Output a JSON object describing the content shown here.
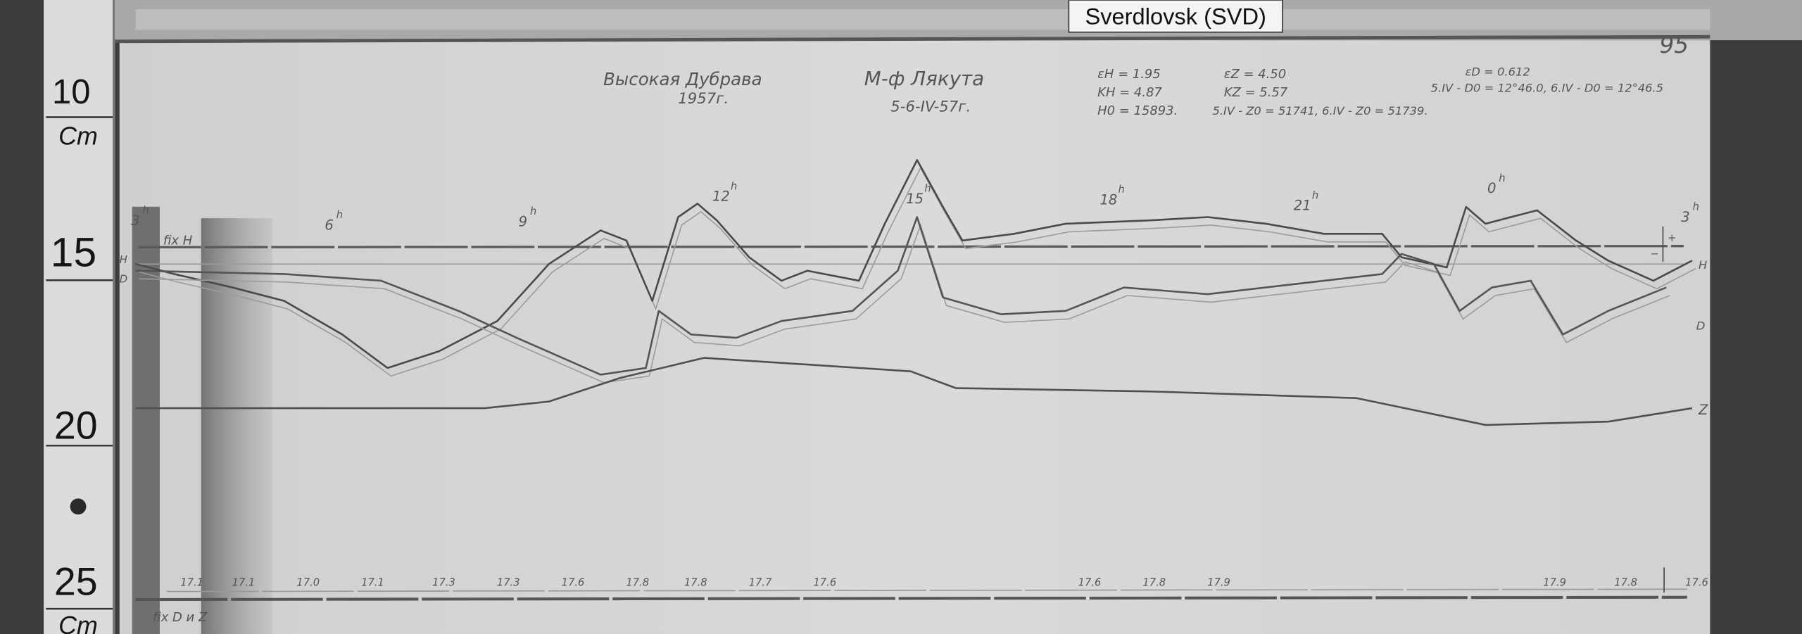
{
  "tag_label": "Sverdlovsk (SVD)",
  "page_number": "95",
  "ruler": {
    "unit_top": "Cm",
    "unit_bottom": "Cm",
    "marks": [
      "10",
      "15",
      "20",
      "25"
    ]
  },
  "header": {
    "station": "Высокая Дубрава",
    "year": "1957г.",
    "observer": "М-ф Лякута",
    "date": "5-6-IV-57г.",
    "eps_h": "εH = 1.95",
    "k_h": "KH = 4.87",
    "h0": "H0 = 15893.",
    "eps_z": "εZ = 4.50",
    "k_z": "KZ = 5.57",
    "z0": "5.IV - Z0 = 51741,  6.IV - Z0 = 51739.",
    "eps_d": "εD = 0.612",
    "d0": "5.IV - D0 = 12°46.0,  6.IV - D0 = 12°46.5"
  },
  "annotations": {
    "fix_h": "fix H",
    "fix_dz": "fix D и Z",
    "left_h": "H",
    "left_d": "D",
    "left_z": "Z",
    "plus": "+",
    "minus": "−"
  },
  "chart_data": {
    "type": "line",
    "title": "",
    "xlabel": "",
    "ylabel": "",
    "y_unit": "cm (ruler)",
    "x_ticks": [
      {
        "hour": 3,
        "label": "3h"
      },
      {
        "hour": 6,
        "label": "6h"
      },
      {
        "hour": 9,
        "label": "9h"
      },
      {
        "hour": 12,
        "label": "12h"
      },
      {
        "hour": 15,
        "label": "15h"
      },
      {
        "hour": 18,
        "label": "18h"
      },
      {
        "hour": 21,
        "label": "21h"
      },
      {
        "hour": 24,
        "label": "0h"
      },
      {
        "hour": 27,
        "label": "3h"
      }
    ],
    "baselines": {
      "H": 14.7,
      "H2": 15.2,
      "bottom": 26.4
    },
    "series": [
      {
        "name": "H",
        "color": "#4a4a4a",
        "points": [
          [
            3.0,
            15.2
          ],
          [
            3.6,
            15.5
          ],
          [
            4.5,
            15.9
          ],
          [
            5.3,
            16.3
          ],
          [
            6.2,
            17.3
          ],
          [
            6.9,
            18.3
          ],
          [
            7.7,
            17.8
          ],
          [
            8.6,
            16.9
          ],
          [
            9.4,
            15.2
          ],
          [
            10.2,
            14.2
          ],
          [
            10.6,
            14.5
          ],
          [
            11.0,
            16.3
          ],
          [
            11.4,
            13.8
          ],
          [
            11.7,
            13.4
          ],
          [
            12.0,
            13.9
          ],
          [
            12.5,
            15.0
          ],
          [
            13.0,
            15.7
          ],
          [
            13.4,
            15.4
          ],
          [
            14.2,
            15.7
          ],
          [
            14.6,
            14.0
          ],
          [
            15.1,
            12.1
          ],
          [
            15.5,
            13.5
          ],
          [
            15.8,
            14.5
          ],
          [
            16.6,
            14.3
          ],
          [
            17.4,
            14.0
          ],
          [
            18.7,
            13.9
          ],
          [
            19.6,
            13.8
          ],
          [
            20.5,
            14.0
          ],
          [
            21.4,
            14.3
          ],
          [
            22.3,
            14.3
          ],
          [
            22.6,
            15.0
          ],
          [
            23.3,
            15.3
          ],
          [
            23.6,
            13.5
          ],
          [
            23.9,
            14.0
          ],
          [
            24.7,
            13.6
          ],
          [
            25.3,
            14.5
          ],
          [
            25.8,
            15.1
          ],
          [
            26.5,
            15.7
          ],
          [
            27.1,
            15.1
          ]
        ]
      },
      {
        "name": "D",
        "color": "#555555",
        "points": [
          [
            3.0,
            15.4
          ],
          [
            5.3,
            15.5
          ],
          [
            6.8,
            15.7
          ],
          [
            8.0,
            16.6
          ],
          [
            8.9,
            17.4
          ],
          [
            10.2,
            18.5
          ],
          [
            10.9,
            18.3
          ],
          [
            11.1,
            16.6
          ],
          [
            11.6,
            17.3
          ],
          [
            12.3,
            17.4
          ],
          [
            13.0,
            16.9
          ],
          [
            14.1,
            16.6
          ],
          [
            14.8,
            15.4
          ],
          [
            15.1,
            13.8
          ],
          [
            15.5,
            16.2
          ],
          [
            16.4,
            16.7
          ],
          [
            17.4,
            16.6
          ],
          [
            18.3,
            15.9
          ],
          [
            19.6,
            16.1
          ],
          [
            21.4,
            15.7
          ],
          [
            22.3,
            15.5
          ],
          [
            22.6,
            14.9
          ],
          [
            23.1,
            15.2
          ],
          [
            23.5,
            16.6
          ],
          [
            24.0,
            15.9
          ],
          [
            24.6,
            15.7
          ],
          [
            25.1,
            17.3
          ],
          [
            25.8,
            16.6
          ],
          [
            26.7,
            15.9
          ]
        ]
      },
      {
        "name": "Z",
        "color": "#505050",
        "points": [
          [
            3.0,
            19.5
          ],
          [
            6.2,
            19.5
          ],
          [
            8.4,
            19.5
          ],
          [
            9.4,
            19.3
          ],
          [
            10.5,
            18.6
          ],
          [
            11.8,
            18.0
          ],
          [
            13.4,
            18.2
          ],
          [
            15.0,
            18.4
          ],
          [
            15.7,
            18.9
          ],
          [
            18.7,
            19.0
          ],
          [
            21.9,
            19.2
          ],
          [
            23.9,
            20.0
          ],
          [
            25.8,
            19.9
          ],
          [
            27.1,
            19.5
          ]
        ]
      }
    ],
    "bottom_readings": [
      {
        "hour": 3.8,
        "value": "17.1"
      },
      {
        "hour": 4.6,
        "value": "17.1"
      },
      {
        "hour": 5.6,
        "value": "17.0"
      },
      {
        "hour": 6.6,
        "value": "17.1"
      },
      {
        "hour": 7.7,
        "value": "17.3"
      },
      {
        "hour": 8.7,
        "value": "17.3"
      },
      {
        "hour": 9.7,
        "value": "17.6"
      },
      {
        "hour": 10.7,
        "value": "17.8"
      },
      {
        "hour": 11.6,
        "value": "17.8"
      },
      {
        "hour": 12.6,
        "value": "17.7"
      },
      {
        "hour": 13.6,
        "value": "17.6"
      },
      {
        "hour": 17.7,
        "value": "17.6"
      },
      {
        "hour": 18.7,
        "value": "17.8"
      },
      {
        "hour": 19.7,
        "value": "17.9"
      },
      {
        "hour": 24.9,
        "value": "17.9"
      },
      {
        "hour": 26.0,
        "value": "17.8"
      },
      {
        "hour": 27.1,
        "value": "17.6"
      }
    ],
    "grid": false,
    "legend": "none"
  }
}
